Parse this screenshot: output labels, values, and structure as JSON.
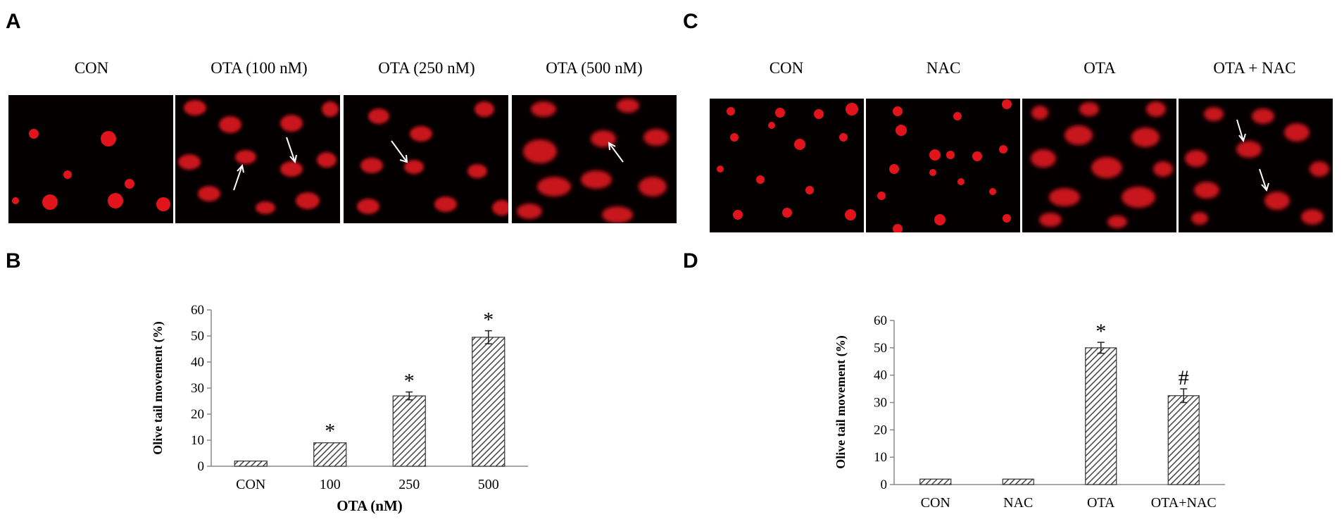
{
  "panels": {
    "A": {
      "letter": "A",
      "labels": [
        "CON",
        "OTA (100 nM)",
        "OTA (250 nM)",
        "OTA (500 nM)"
      ]
    },
    "B": {
      "letter": "B"
    },
    "C": {
      "letter": "C",
      "labels": [
        "CON",
        "NAC",
        "OTA",
        "OTA + NAC"
      ]
    },
    "D": {
      "letter": "D"
    }
  },
  "colors": {
    "micro_bg": "#050000",
    "cell": "#e0141a",
    "bar_fill": "#ffffff",
    "bar_hatch": "#444444"
  },
  "chart_data": [
    {
      "type": "bar",
      "panel": "B",
      "title": "",
      "xlabel": "OTA (nM)",
      "ylabel": "Olive tail movement (%)",
      "ylim": [
        0,
        60
      ],
      "yticks": [
        0,
        10,
        20,
        30,
        40,
        50,
        60
      ],
      "categories": [
        "CON",
        "100",
        "250",
        "500"
      ],
      "values": [
        2,
        9,
        27,
        49.5
      ],
      "errors": [
        0.3,
        0.3,
        1.5,
        2.5
      ],
      "annotations": [
        "",
        "*",
        "*",
        "*"
      ]
    },
    {
      "type": "bar",
      "panel": "D",
      "title": "",
      "xlabel": "",
      "ylabel": "Olive tail movement (%)",
      "ylim": [
        0,
        60
      ],
      "yticks": [
        0,
        10,
        20,
        30,
        40,
        50,
        60
      ],
      "categories": [
        "CON",
        "NAC",
        "OTA",
        "OTA+NAC"
      ],
      "values": [
        2,
        2,
        50,
        32.5
      ],
      "errors": [
        0.3,
        0.3,
        2,
        2.5
      ],
      "annotations": [
        "",
        "",
        "*",
        "#"
      ]
    }
  ]
}
